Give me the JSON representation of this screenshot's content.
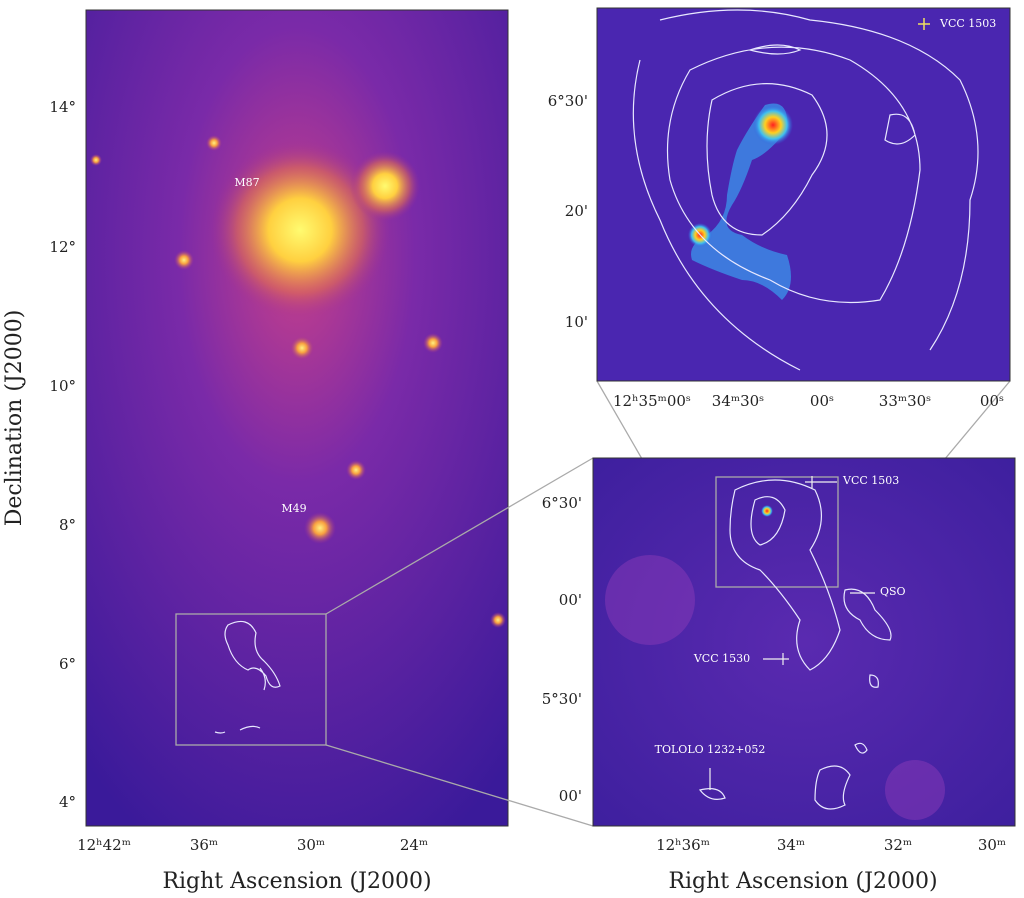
{
  "y_axis_label": "Declination (J2000)",
  "panels": [
    {
      "x_axis_label": "Right Ascension (J2000)",
      "yticks": [
        "14°",
        "12°",
        "10°",
        "8°",
        "6°",
        "4°"
      ],
      "xticks": [
        "12ʰ42ᵐ",
        "36ᵐ",
        "30ᵐ",
        "24ᵐ"
      ],
      "labels": [
        "M87",
        "M49"
      ]
    },
    {
      "yticks": [
        "6°30'",
        "20'",
        "10'"
      ],
      "xticks": [
        "12ʰ35ᵐ00ˢ",
        "34ᵐ30ˢ",
        "00ˢ",
        "33ᵐ30ˢ",
        "00ˢ"
      ],
      "labels": [
        "VCC 1503"
      ]
    },
    {
      "x_axis_label": "Right Ascension (J2000)",
      "yticks": [
        "6°30'",
        "00'",
        "5°30'",
        "00'"
      ],
      "xticks": [
        "12ʰ36ᵐ",
        "34ᵐ",
        "32ᵐ",
        "30ᵐ"
      ],
      "labels": [
        "VCC 1503",
        "QSO",
        "VCC 1530",
        "TOLOLO 1232+052"
      ]
    }
  ]
}
